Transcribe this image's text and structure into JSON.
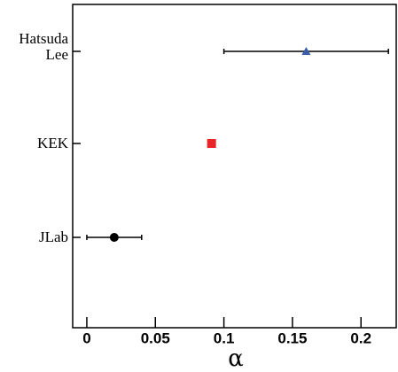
{
  "chart_data": {
    "type": "point-errorbar",
    "x_label": "α",
    "categories": [
      "Hatsuda\nLee",
      "KEK",
      "JLab"
    ],
    "values": [
      0.16,
      0.091,
      0.02
    ],
    "errors": [
      0.06,
      null,
      0.02
    ],
    "markers": [
      "triangle",
      "square",
      "circle"
    ],
    "colors": [
      "#3a5ba6",
      "#e8262a",
      "#000000"
    ],
    "xlim": [
      -0.0103,
      0.2257
    ],
    "xticks": [
      0,
      0.05,
      0.1,
      0.15,
      0.2
    ]
  }
}
